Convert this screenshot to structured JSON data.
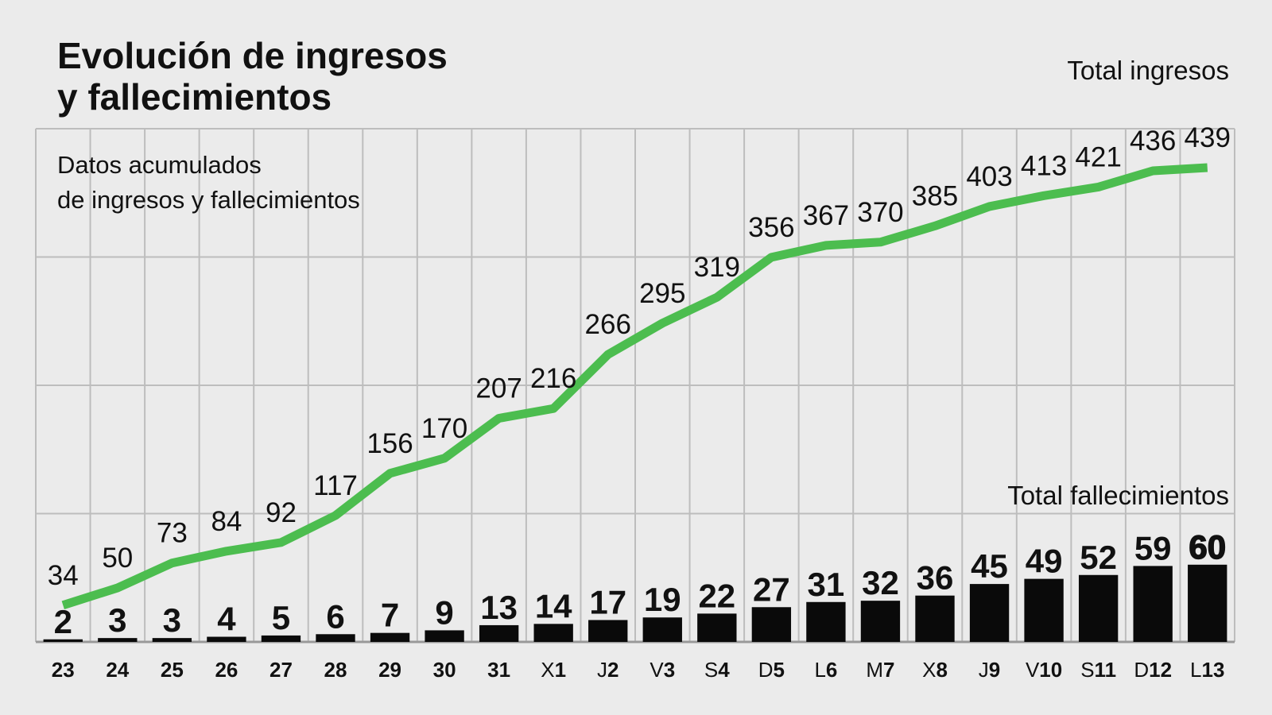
{
  "chart_data": {
    "type": "bar",
    "title_line1": "Evolución de ingresos",
    "title_line2": "y fallecimientos",
    "subtitle_line1": "Datos acumulados",
    "subtitle_line2": "de ingresos y fallecimientos",
    "categories": [
      {
        "prefix": "",
        "num": "23"
      },
      {
        "prefix": "",
        "num": "24"
      },
      {
        "prefix": "",
        "num": "25"
      },
      {
        "prefix": "",
        "num": "26"
      },
      {
        "prefix": "",
        "num": "27"
      },
      {
        "prefix": "",
        "num": "28"
      },
      {
        "prefix": "",
        "num": "29"
      },
      {
        "prefix": "",
        "num": "30"
      },
      {
        "prefix": "",
        "num": "31"
      },
      {
        "prefix": "X",
        "num": "1"
      },
      {
        "prefix": "J",
        "num": "2"
      },
      {
        "prefix": "V",
        "num": "3"
      },
      {
        "prefix": "S",
        "num": "4"
      },
      {
        "prefix": "D",
        "num": "5"
      },
      {
        "prefix": "L",
        "num": "6"
      },
      {
        "prefix": "M",
        "num": "7"
      },
      {
        "prefix": "X",
        "num": "8"
      },
      {
        "prefix": "J",
        "num": "9"
      },
      {
        "prefix": "V",
        "num": "10"
      },
      {
        "prefix": "S",
        "num": "11"
      },
      {
        "prefix": "D",
        "num": "12"
      },
      {
        "prefix": "L",
        "num": "13"
      }
    ],
    "series": [
      {
        "name": "Total ingresos",
        "type": "line",
        "color": "#4cbd4f",
        "values": [
          34,
          50,
          73,
          84,
          92,
          117,
          156,
          170,
          207,
          216,
          266,
          295,
          319,
          356,
          367,
          370,
          385,
          403,
          413,
          421,
          436,
          439
        ]
      },
      {
        "name": "Total fallecimientos",
        "type": "bar",
        "color": "#0a0a0a",
        "values": [
          2,
          3,
          3,
          4,
          5,
          6,
          7,
          9,
          13,
          14,
          17,
          19,
          22,
          27,
          31,
          32,
          36,
          45,
          49,
          52,
          59,
          60
        ]
      }
    ],
    "ylim": [
      0,
      475
    ],
    "grid": true,
    "legend": "inline"
  }
}
